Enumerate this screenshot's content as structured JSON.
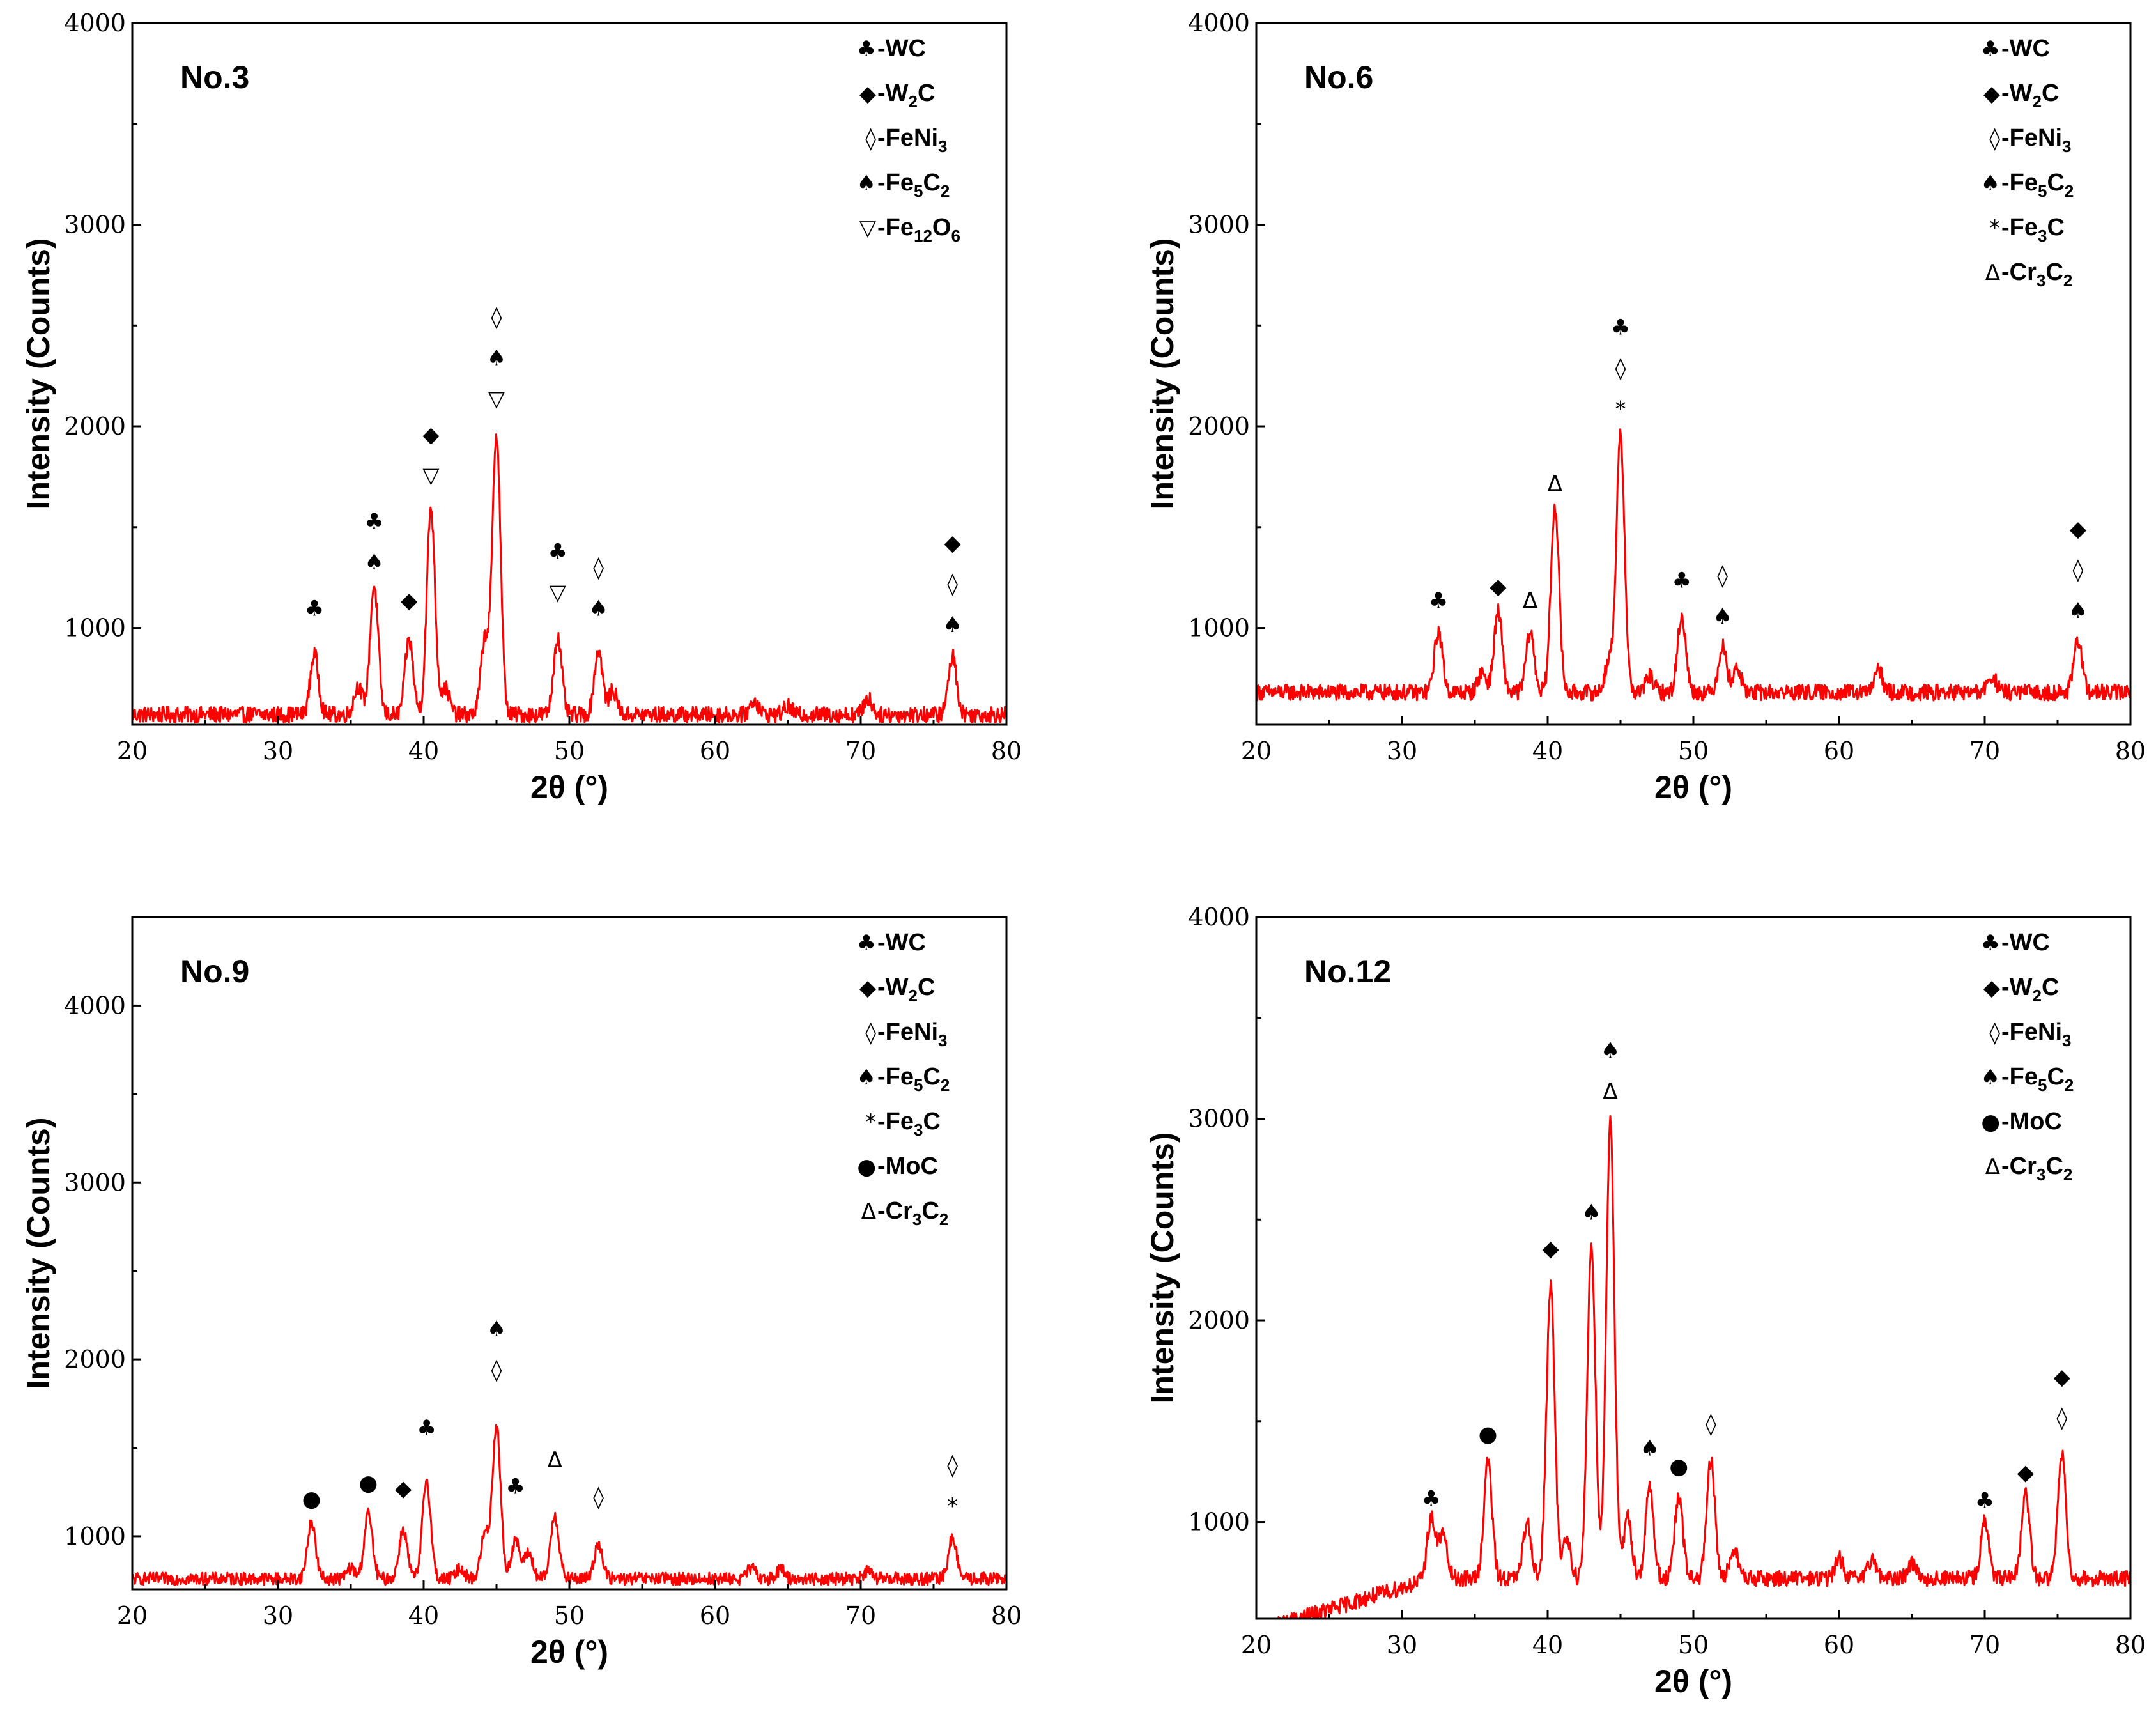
{
  "chart_data": [
    {
      "type": "line",
      "title": "No.3",
      "xlabel": "2θ (°)",
      "ylabel": "Intensity (Counts)",
      "xlim": [
        20,
        80
      ],
      "ylim": [
        520,
        4000
      ],
      "xticks": [
        "20",
        "30",
        "40",
        "50",
        "60",
        "70",
        "80"
      ],
      "yticks": [
        "1000",
        "2000",
        "3000",
        "4000"
      ],
      "background": 570,
      "noise": 40,
      "series": [
        {
          "name": "No.3",
          "color": "#ff0000",
          "peaks": [
            [
              32.5,
              300
            ],
            [
              35.5,
              140
            ],
            [
              36.6,
              640
            ],
            [
              39.0,
              370
            ],
            [
              40.5,
              1030
            ],
            [
              41.5,
              130
            ],
            [
              44.2,
              370
            ],
            [
              45.0,
              1390
            ],
            [
              49.2,
              380
            ],
            [
              52.0,
              320
            ],
            [
              53.0,
              120
            ],
            [
              62.7,
              70
            ],
            [
              65,
              40
            ],
            [
              70.5,
              80
            ],
            [
              76.3,
              290
            ]
          ]
        }
      ],
      "legend": [
        {
          "sym": "♣",
          "pre": "-WC",
          "sub": "",
          "post": ""
        },
        {
          "sym": "◆",
          "pre": "-W",
          "sub": "2",
          "post": "C"
        },
        {
          "sym": "◊",
          "pre": "-FeNi",
          "sub": "3",
          "post": ""
        },
        {
          "sym": "♠",
          "pre": "-Fe",
          "sub": "5",
          "post": "C",
          "sub2": "2"
        },
        {
          "sym": "▽",
          "pre": "-Fe",
          "sub": "12",
          "post": "O",
          "sub2": "6"
        }
      ],
      "annotations": [
        {
          "x": 32.5,
          "y": 1060,
          "syms": [
            "♣"
          ]
        },
        {
          "x": 36.6,
          "y": 1290,
          "syms": [
            "♠",
            "♣"
          ]
        },
        {
          "x": 39.0,
          "y": 1100,
          "syms": [
            "◆"
          ]
        },
        {
          "x": 40.5,
          "y": 1720,
          "syms": [
            "▽",
            "◆"
          ]
        },
        {
          "x": 45.0,
          "y": 2100,
          "syms": [
            "▽",
            "♠",
            "◊"
          ]
        },
        {
          "x": 49.2,
          "y": 1140,
          "syms": [
            "▽",
            "♣"
          ]
        },
        {
          "x": 52.0,
          "y": 1060,
          "syms": [
            "♠",
            "◊"
          ]
        },
        {
          "x": 76.3,
          "y": 980,
          "syms": [
            "♠",
            "◊",
            "◆"
          ]
        }
      ]
    },
    {
      "type": "line",
      "title": "No.6",
      "xlabel": "2θ (°)",
      "ylabel": "Intensity (Counts)",
      "xlim": [
        20,
        80
      ],
      "ylim": [
        520,
        4000
      ],
      "xticks": [
        "20",
        "30",
        "40",
        "50",
        "60",
        "70",
        "80"
      ],
      "yticks": [
        "1000",
        "2000",
        "3000",
        "4000"
      ],
      "background": 680,
      "noise": 40,
      "series": [
        {
          "name": "No.6",
          "color": "#ff0000",
          "peaks": [
            [
              32.5,
              300
            ],
            [
              35.5,
              100
            ],
            [
              36.6,
              400
            ],
            [
              38.8,
              300
            ],
            [
              40.5,
              930
            ],
            [
              44.2,
              150
            ],
            [
              45.0,
              1270
            ],
            [
              47,
              80
            ],
            [
              49.2,
              380
            ],
            [
              52.0,
              230
            ],
            [
              53.0,
              120
            ],
            [
              62.7,
              110
            ],
            [
              70.5,
              80
            ],
            [
              76.4,
              260
            ]
          ]
        }
      ],
      "legend": [
        {
          "sym": "♣",
          "pre": "-WC",
          "sub": "",
          "post": ""
        },
        {
          "sym": "◆",
          "pre": "-W",
          "sub": "2",
          "post": "C"
        },
        {
          "sym": "◊",
          "pre": "-FeNi",
          "sub": "3",
          "post": ""
        },
        {
          "sym": "♠",
          "pre": "-Fe",
          "sub": "5",
          "post": "C",
          "sub2": "2"
        },
        {
          "sym": "*",
          "pre": "-Fe",
          "sub": "3",
          "post": "C"
        },
        {
          "sym": "Δ",
          "pre": "-Cr",
          "sub": "3",
          "post": "C",
          "sub2": "2"
        }
      ],
      "annotations": [
        {
          "x": 32.5,
          "y": 1100,
          "syms": [
            "♣"
          ]
        },
        {
          "x": 36.6,
          "y": 1170,
          "syms": [
            "◆"
          ]
        },
        {
          "x": 38.8,
          "y": 1100,
          "syms": [
            "Δ"
          ]
        },
        {
          "x": 40.5,
          "y": 1680,
          "syms": [
            "Δ"
          ]
        },
        {
          "x": 45.0,
          "y": 2050,
          "syms": [
            "*",
            "◊",
            "♣"
          ]
        },
        {
          "x": 49.2,
          "y": 1200,
          "syms": [
            "♣"
          ]
        },
        {
          "x": 52.0,
          "y": 1020,
          "syms": [
            "♠",
            "◊"
          ]
        },
        {
          "x": 76.4,
          "y": 1050,
          "syms": [
            "♠",
            "◊",
            "◆"
          ]
        }
      ]
    },
    {
      "type": "line",
      "title": "No.9",
      "xlabel": "2θ (°)",
      "ylabel": "Intensity (Counts)",
      "xlim": [
        20,
        80
      ],
      "ylim": [
        700,
        4500
      ],
      "xticks": [
        "20",
        "30",
        "40",
        "50",
        "60",
        "70",
        "80"
      ],
      "yticks": [
        "1000",
        "2000",
        "3000",
        "4000"
      ],
      "background": 760,
      "noise": 35,
      "series": [
        {
          "name": "No.9",
          "color": "#ff0000",
          "peaks": [
            [
              32.3,
              320
            ],
            [
              35,
              60
            ],
            [
              36.2,
              370
            ],
            [
              38.6,
              280
            ],
            [
              40.2,
              560
            ],
            [
              42.5,
              60
            ],
            [
              44.2,
              250
            ],
            [
              45.0,
              870
            ],
            [
              46.3,
              220
            ],
            [
              47.2,
              150
            ],
            [
              49.0,
              360
            ],
            [
              52.0,
              200
            ],
            [
              62.5,
              60
            ],
            [
              64.5,
              50
            ],
            [
              70.5,
              40
            ],
            [
              76.3,
              230
            ]
          ]
        }
      ],
      "legend": [
        {
          "sym": "♣",
          "pre": "-WC",
          "sub": "",
          "post": ""
        },
        {
          "sym": "◆",
          "pre": "-W",
          "sub": "2",
          "post": "C"
        },
        {
          "sym": "◊",
          "pre": "-FeNi",
          "sub": "3",
          "post": ""
        },
        {
          "sym": "♠",
          "pre": "-Fe",
          "sub": "5",
          "post": "C",
          "sub2": "2"
        },
        {
          "sym": "*",
          "pre": "-Fe",
          "sub": "3",
          "post": "C"
        },
        {
          "sym": "●",
          "pre": "-MoC",
          "sub": "",
          "post": ""
        },
        {
          "sym": "Δ",
          "pre": "-Cr",
          "sub": "3",
          "post": "C",
          "sub2": "2"
        }
      ],
      "annotations": [
        {
          "x": 32.3,
          "y": 1170,
          "syms": [
            "●"
          ]
        },
        {
          "x": 36.2,
          "y": 1260,
          "syms": [
            "●"
          ]
        },
        {
          "x": 38.6,
          "y": 1230,
          "syms": [
            "◆"
          ]
        },
        {
          "x": 40.2,
          "y": 1570,
          "syms": [
            "♣"
          ]
        },
        {
          "x": 45.0,
          "y": 1900,
          "syms": [
            "◊",
            "♠"
          ]
        },
        {
          "x": 46.3,
          "y": 1240,
          "syms": [
            "♣"
          ]
        },
        {
          "x": 49.0,
          "y": 1390,
          "syms": [
            "Δ"
          ]
        },
        {
          "x": 52.0,
          "y": 1180,
          "syms": [
            "◊"
          ]
        },
        {
          "x": 76.3,
          "y": 1130,
          "syms": [
            "*",
            "◊"
          ]
        }
      ]
    },
    {
      "type": "line",
      "title": "No.12",
      "xlabel": "2θ (°)",
      "ylabel": "Intensity (Counts)",
      "xlim": [
        20,
        80
      ],
      "ylim": [
        520,
        4000
      ],
      "xticks": [
        "20",
        "30",
        "40",
        "50",
        "60",
        "70",
        "80"
      ],
      "yticks": [
        "1000",
        "2000",
        "3000",
        "4000"
      ],
      "background": 720,
      "noise": 40,
      "series": [
        {
          "name": "No.12",
          "color": "#ff0000",
          "peaks": [
            [
              32.0,
              300
            ],
            [
              32.8,
              220
            ],
            [
              35.9,
              580
            ],
            [
              38.6,
              280
            ],
            [
              40.2,
              1450
            ],
            [
              41.3,
              200
            ],
            [
              43.0,
              1650
            ],
            [
              44.3,
              2280
            ],
            [
              45.5,
              300
            ],
            [
              47.0,
              450
            ],
            [
              49.0,
              400
            ],
            [
              51.2,
              580
            ],
            [
              52.8,
              150
            ],
            [
              60,
              100
            ],
            [
              62.3,
              100
            ],
            [
              65,
              80
            ],
            [
              70.0,
              280
            ],
            [
              72.8,
              420
            ],
            [
              75.3,
              620
            ]
          ]
        }
      ],
      "legend": [
        {
          "sym": "♣",
          "pre": "-WC",
          "sub": "",
          "post": ""
        },
        {
          "sym": "◆",
          "pre": "-W",
          "sub": "2",
          "post": "C"
        },
        {
          "sym": "◊",
          "pre": "-FeNi",
          "sub": "3",
          "post": ""
        },
        {
          "sym": "♠",
          "pre": "-Fe",
          "sub": "5",
          "post": "C",
          "sub2": "2"
        },
        {
          "sym": "●",
          "pre": "-MoC",
          "sub": "",
          "post": ""
        },
        {
          "sym": "Δ",
          "pre": "-Cr",
          "sub": "3",
          "post": "C",
          "sub2": "2"
        }
      ],
      "annotations": [
        {
          "x": 32.0,
          "y": 1080,
          "syms": [
            "♣"
          ]
        },
        {
          "x": 35.9,
          "y": 1400,
          "syms": [
            "●"
          ]
        },
        {
          "x": 40.2,
          "y": 2320,
          "syms": [
            "◆"
          ]
        },
        {
          "x": 43.0,
          "y": 2500,
          "syms": [
            "♠"
          ]
        },
        {
          "x": 44.3,
          "y": 3100,
          "syms": [
            "Δ",
            "♠"
          ]
        },
        {
          "x": 47.0,
          "y": 1330,
          "syms": [
            "♠"
          ]
        },
        {
          "x": 49.0,
          "y": 1240,
          "syms": [
            "●"
          ]
        },
        {
          "x": 51.2,
          "y": 1450,
          "syms": [
            "◊"
          ]
        },
        {
          "x": 70.0,
          "y": 1070,
          "syms": [
            "♣"
          ]
        },
        {
          "x": 72.8,
          "y": 1210,
          "syms": [
            "◆"
          ]
        },
        {
          "x": 75.3,
          "y": 1480,
          "syms": [
            "◊",
            "◆"
          ]
        }
      ]
    }
  ]
}
